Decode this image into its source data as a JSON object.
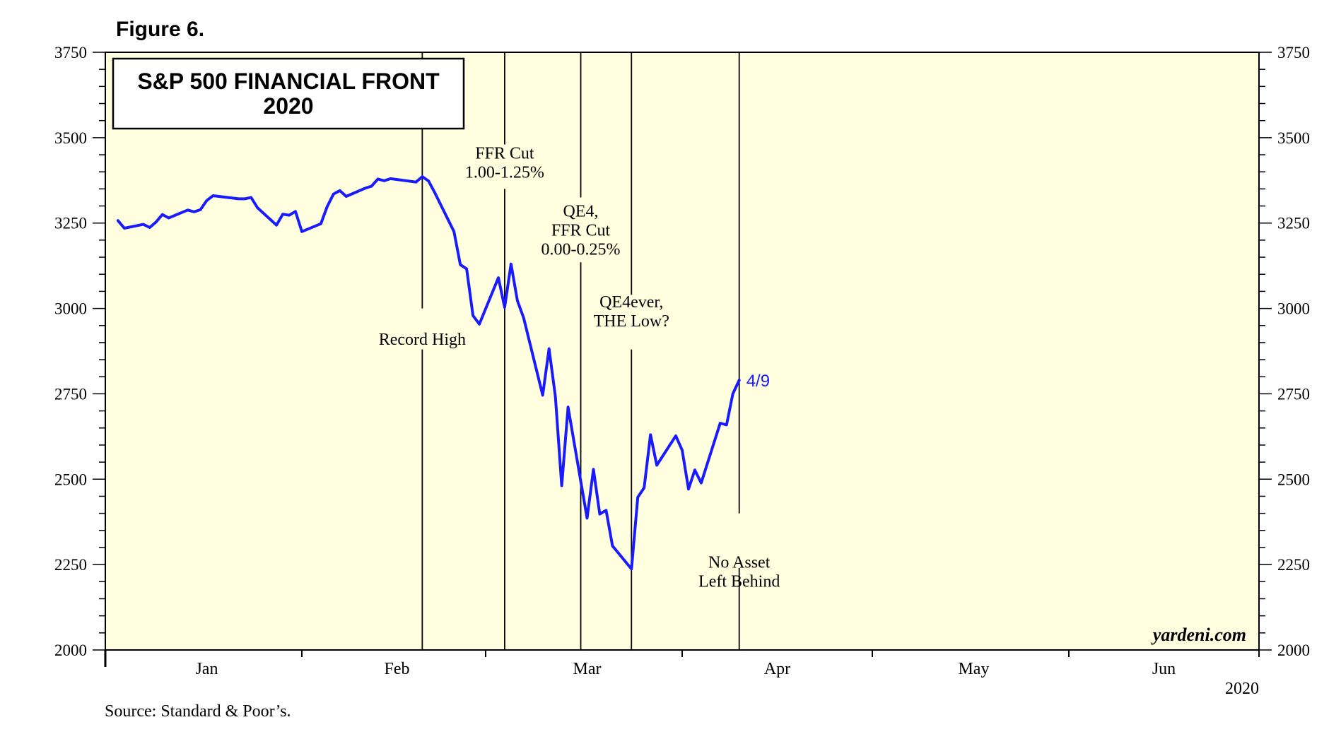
{
  "figure_label": "Figure 6.",
  "source_note": "Source: Standard & Poor’s.",
  "watermark": "yardeni.com",
  "year_label": "2020",
  "colors": {
    "plot_bg": "#ffffe0",
    "series": "#1a1aff",
    "frame": "#000000"
  },
  "chart_data": {
    "type": "line",
    "title": "S&P 500 FINANCIAL FRONT",
    "subtitle": "2020",
    "ylim": [
      2000,
      3750
    ],
    "yticks": [
      2000,
      2250,
      2500,
      2750,
      3000,
      3250,
      3500,
      3750
    ],
    "xlim": [
      "2019-12-31",
      "2020-06-30"
    ],
    "month_ticks": [
      "2019-12-31",
      "2020-01-31",
      "2020-02-29",
      "2020-03-31",
      "2020-04-30",
      "2020-05-31",
      "2020-06-30"
    ],
    "month_labels": [
      {
        "label": "Jan",
        "date": "2020-01-16"
      },
      {
        "label": "Feb",
        "date": "2020-02-15"
      },
      {
        "label": "Mar",
        "date": "2020-03-16"
      },
      {
        "label": "Apr",
        "date": "2020-04-15"
      },
      {
        "label": "May",
        "date": "2020-05-16"
      },
      {
        "label": "Jun",
        "date": "2020-06-15"
      }
    ],
    "grid": false,
    "series": [
      {
        "last_label": "4/9",
        "points": [
          [
            "2020-01-02",
            3257
          ],
          [
            "2020-01-03",
            3235
          ],
          [
            "2020-01-06",
            3246
          ],
          [
            "2020-01-07",
            3237
          ],
          [
            "2020-01-08",
            3253
          ],
          [
            "2020-01-09",
            3275
          ],
          [
            "2020-01-10",
            3265
          ],
          [
            "2020-01-13",
            3288
          ],
          [
            "2020-01-14",
            3283
          ],
          [
            "2020-01-15",
            3289
          ],
          [
            "2020-01-16",
            3316
          ],
          [
            "2020-01-17",
            3330
          ],
          [
            "2020-01-21",
            3321
          ],
          [
            "2020-01-22",
            3321
          ],
          [
            "2020-01-23",
            3325
          ],
          [
            "2020-01-24",
            3295
          ],
          [
            "2020-01-27",
            3244
          ],
          [
            "2020-01-28",
            3276
          ],
          [
            "2020-01-29",
            3273
          ],
          [
            "2020-01-30",
            3284
          ],
          [
            "2020-01-31",
            3225
          ],
          [
            "2020-02-03",
            3248
          ],
          [
            "2020-02-04",
            3298
          ],
          [
            "2020-02-05",
            3335
          ],
          [
            "2020-02-06",
            3345
          ],
          [
            "2020-02-07",
            3328
          ],
          [
            "2020-02-10",
            3352
          ],
          [
            "2020-02-11",
            3358
          ],
          [
            "2020-02-12",
            3379
          ],
          [
            "2020-02-13",
            3374
          ],
          [
            "2020-02-14",
            3380
          ],
          [
            "2020-02-18",
            3370
          ],
          [
            "2020-02-19",
            3386
          ],
          [
            "2020-02-20",
            3373
          ],
          [
            "2020-02-21",
            3338
          ],
          [
            "2020-02-24",
            3225
          ],
          [
            "2020-02-25",
            3128
          ],
          [
            "2020-02-26",
            3116
          ],
          [
            "2020-02-27",
            2979
          ],
          [
            "2020-02-28",
            2954
          ],
          [
            "2020-03-02",
            3090
          ],
          [
            "2020-03-03",
            3003
          ],
          [
            "2020-03-04",
            3130
          ],
          [
            "2020-03-05",
            3023
          ],
          [
            "2020-03-06",
            2972
          ],
          [
            "2020-03-09",
            2746
          ],
          [
            "2020-03-10",
            2882
          ],
          [
            "2020-03-11",
            2741
          ],
          [
            "2020-03-12",
            2481
          ],
          [
            "2020-03-13",
            2711
          ],
          [
            "2020-03-16",
            2386
          ],
          [
            "2020-03-17",
            2529
          ],
          [
            "2020-03-18",
            2398
          ],
          [
            "2020-03-19",
            2409
          ],
          [
            "2020-03-20",
            2305
          ],
          [
            "2020-03-23",
            2237
          ],
          [
            "2020-03-24",
            2447
          ],
          [
            "2020-03-25",
            2475
          ],
          [
            "2020-03-26",
            2630
          ],
          [
            "2020-03-27",
            2541
          ],
          [
            "2020-03-30",
            2627
          ],
          [
            "2020-03-31",
            2585
          ],
          [
            "2020-04-01",
            2471
          ],
          [
            "2020-04-02",
            2527
          ],
          [
            "2020-04-03",
            2489
          ],
          [
            "2020-04-06",
            2664
          ],
          [
            "2020-04-07",
            2659
          ],
          [
            "2020-04-08",
            2750
          ],
          [
            "2020-04-09",
            2790
          ]
        ]
      }
    ],
    "annotations": [
      {
        "date": "2020-02-19",
        "lines": [
          "Record High"
        ],
        "label_value": 2910,
        "gap": [
          3000,
          2880
        ]
      },
      {
        "date": "2020-03-03",
        "lines": [
          "FFR Cut",
          "1.00-1.25%"
        ],
        "label_value": 3427,
        "gap": [
          3480,
          3350
        ]
      },
      {
        "date": "2020-03-15",
        "lines": [
          "QE4,",
          "FFR Cut",
          "0.00-0.25%"
        ],
        "label_value": 3230,
        "gap": [
          3325,
          3135
        ]
      },
      {
        "date": "2020-03-23",
        "lines": [
          "QE4ever,",
          "THE Low?"
        ],
        "label_value": 2992,
        "gap": [
          3040,
          2880
        ]
      },
      {
        "date": "2020-04-09",
        "lines": [
          "No Asset",
          "Left Behind"
        ],
        "label_value": 2230,
        "gap": [
          2400,
          2240
        ]
      }
    ]
  }
}
